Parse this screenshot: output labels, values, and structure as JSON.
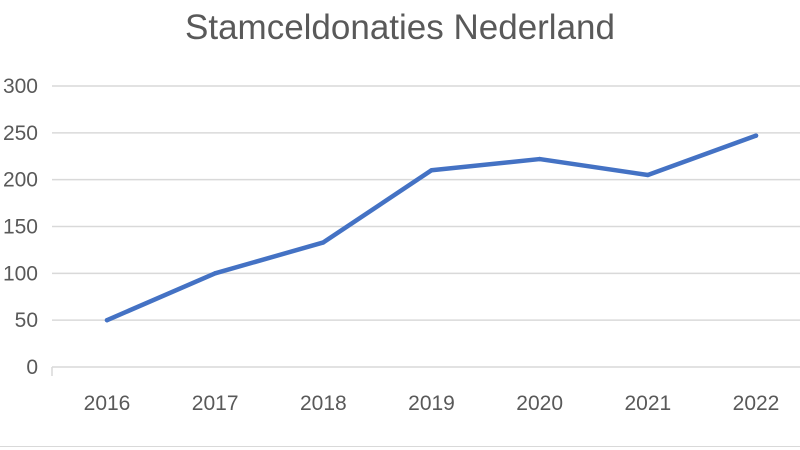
{
  "chart_data": {
    "type": "line",
    "title": "Stamceldonaties Nederland",
    "xlabel": "",
    "ylabel": "",
    "categories": [
      "2016",
      "2017",
      "2018",
      "2019",
      "2020",
      "2021",
      "2022"
    ],
    "series": [
      {
        "values": [
          50,
          100,
          133,
          210,
          222,
          205,
          247
        ],
        "color": "#4472c4"
      }
    ],
    "ylim": [
      0,
      300
    ],
    "yticks": [
      0,
      50,
      100,
      150,
      200,
      250,
      300
    ],
    "ytick_labels": [
      "0",
      "50",
      "100",
      "150",
      "200",
      "250",
      "300"
    ],
    "grid": true,
    "legend": "none"
  }
}
